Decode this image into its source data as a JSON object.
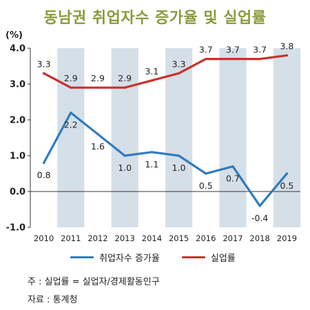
{
  "chart_data": {
    "type": "line",
    "title": "동남권 취업자수 증가율 및 실업률",
    "ylabel": "(%)",
    "x": [
      "2010",
      "2011",
      "2012",
      "2013",
      "2014",
      "2015",
      "2016",
      "2017",
      "2018",
      "2019"
    ],
    "yticks": [
      "4.0",
      "3.0",
      "2.0",
      "1.0",
      "0.0",
      "-1.0"
    ],
    "ylim": [
      -1.0,
      4.0
    ],
    "grid": false,
    "series": [
      {
        "name": "취업자수 증가율",
        "color": "#2f7bbf",
        "values": [
          0.8,
          2.2,
          1.6,
          1.0,
          1.1,
          1.0,
          0.5,
          0.7,
          -0.4,
          0.5
        ],
        "labels": [
          "0.8",
          "2.2",
          "1.6",
          "1.0",
          "1.1",
          "1.0",
          "0.5",
          "0.7",
          "-0.4",
          "0.5"
        ]
      },
      {
        "name": "실업률",
        "color": "#c9302c",
        "values": [
          3.3,
          2.9,
          2.9,
          2.9,
          3.1,
          3.3,
          3.7,
          3.7,
          3.7,
          3.8
        ],
        "labels": [
          "3.3",
          "2.9",
          "2.9",
          "2.9",
          "3.1",
          "3.3",
          "3.7",
          "3.7",
          "3.7",
          "3.8"
        ]
      }
    ],
    "legend": "bottom",
    "note": "주 : 실업률 = 실업자/경제활동인구",
    "source": "자료 : 통계청",
    "band_color": "#d5dfe8"
  }
}
